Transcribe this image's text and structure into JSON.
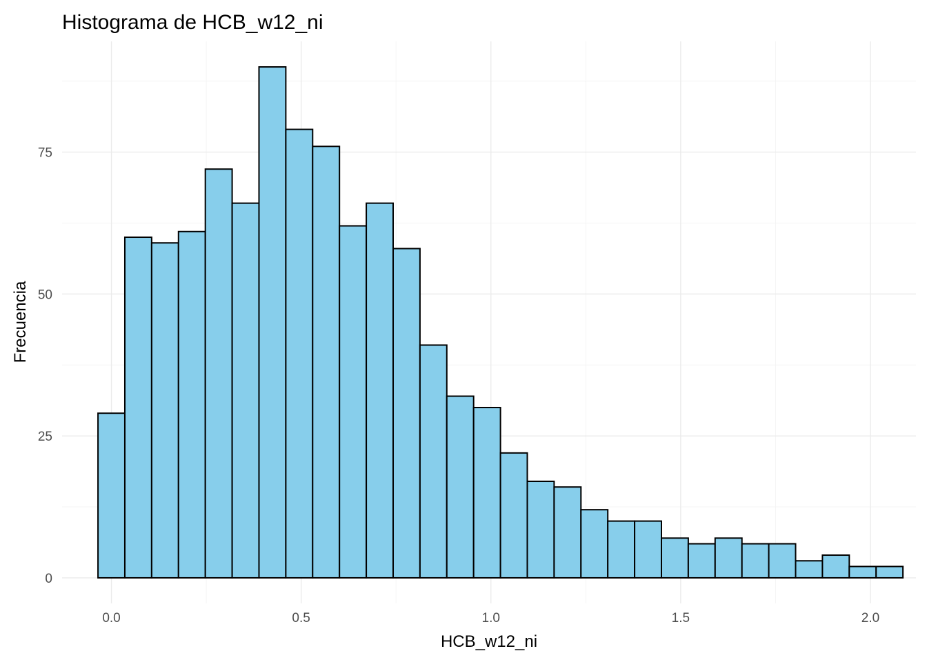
{
  "chart_data": {
    "type": "bar",
    "title": "Histograma de HCB_w12_ni",
    "xlabel": "HCB_w12_ni",
    "ylabel": "Frecuencia",
    "bin_width": 0.0707,
    "bin_centers": [
      0.0,
      0.0707,
      0.1414,
      0.2121,
      0.2828,
      0.3535,
      0.4242,
      0.4949,
      0.5656,
      0.6363,
      0.707,
      0.7777,
      0.8484,
      0.9191,
      0.9898,
      1.0605,
      1.1312,
      1.2019,
      1.2726,
      1.3433,
      1.414,
      1.4847,
      1.5554,
      1.6261,
      1.6968,
      1.7675,
      1.8382,
      1.9089,
      1.9796,
      2.0503
    ],
    "values": [
      29,
      60,
      59,
      61,
      72,
      66,
      90,
      79,
      76,
      62,
      66,
      58,
      41,
      32,
      30,
      22,
      17,
      16,
      12,
      10,
      10,
      7,
      6,
      7,
      6,
      6,
      3,
      4,
      2,
      2
    ],
    "xlim": [
      -0.13,
      2.12
    ],
    "ylim": [
      -4.5,
      94.5
    ],
    "x_ticks": [
      0.0,
      0.5,
      1.0,
      1.5,
      2.0
    ],
    "x_tick_labels": [
      "0.0",
      "0.5",
      "1.0",
      "1.5",
      "2.0"
    ],
    "y_ticks": [
      0,
      25,
      50,
      75
    ],
    "y_tick_labels": [
      "0",
      "25",
      "50",
      "75"
    ],
    "grid": true,
    "fill_color": "#87CEEB",
    "edge_color": "#000000",
    "grid_color": "#EBEBEB"
  }
}
